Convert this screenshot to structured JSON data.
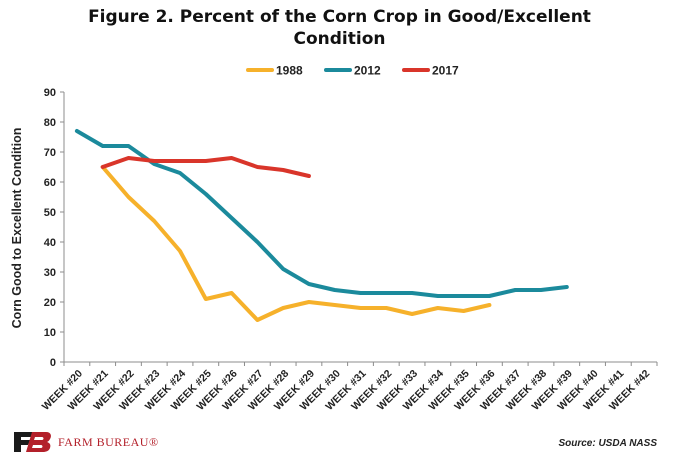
{
  "chart_data": {
    "type": "line",
    "title": "Figure 2. Percent of the Corn Crop in Good/Excellent Condition",
    "title_lines": [
      "Figure 2. Percent of the Corn Crop in Good/Excellent",
      "Condition"
    ],
    "ylabel": "Corn Good to Excellent Condition",
    "xlabel": "",
    "ylim": [
      0,
      90
    ],
    "yticks": [
      0,
      10,
      20,
      30,
      40,
      50,
      60,
      70,
      80,
      90
    ],
    "grid": false,
    "legend_position": "top-center",
    "categories": [
      "WEEK #20",
      "WEEK #21",
      "WEEK #22",
      "WEEK #23",
      "WEEK #24",
      "WEEK #25",
      "WEEK #26",
      "WEEK #27",
      "WEEK #28",
      "WEEK #29",
      "WEEK #30",
      "WEEK #31",
      "WEEK #32",
      "WEEK #33",
      "WEEK #34",
      "WEEK #35",
      "WEEK #36",
      "WEEK #37",
      "WEEK #38",
      "WEEK #39",
      "WEEK #40",
      "WEEK #41",
      "WEEK #42"
    ],
    "series": [
      {
        "name": "1988",
        "color": "#f6b12b",
        "values": [
          null,
          65,
          55,
          47,
          37,
          21,
          23,
          14,
          18,
          20,
          19,
          18,
          18,
          16,
          18,
          17,
          19,
          null,
          null,
          null,
          null,
          null,
          null
        ]
      },
      {
        "name": "2012",
        "color": "#1b8a9c",
        "values": [
          77,
          72,
          72,
          66,
          63,
          56,
          48,
          40,
          31,
          26,
          24,
          23,
          23,
          23,
          22,
          22,
          22,
          24,
          24,
          25,
          null,
          null,
          null
        ]
      },
      {
        "name": "2017",
        "color": "#d9352a",
        "values": [
          null,
          65,
          68,
          67,
          67,
          67,
          68,
          65,
          64,
          62,
          null,
          null,
          null,
          null,
          null,
          null,
          null,
          null,
          null,
          null,
          null,
          null,
          null
        ]
      }
    ]
  },
  "footer": {
    "brand": "FARM BUREAU®",
    "source": "Source: USDA NASS"
  },
  "colors": {
    "brand_red": "#b3202a"
  }
}
